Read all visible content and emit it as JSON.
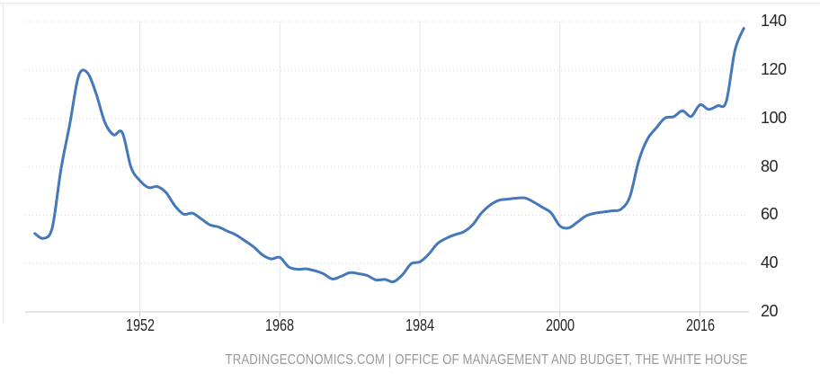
{
  "chart_data": {
    "type": "line",
    "title": "",
    "xlabel": "",
    "ylabel": "",
    "x": [
      1940,
      1941,
      1942,
      1943,
      1944,
      1945,
      1946,
      1947,
      1948,
      1949,
      1950,
      1951,
      1952,
      1953,
      1954,
      1955,
      1956,
      1957,
      1958,
      1959,
      1960,
      1961,
      1962,
      1963,
      1964,
      1965,
      1966,
      1967,
      1968,
      1969,
      1970,
      1971,
      1972,
      1973,
      1974,
      1975,
      1976,
      1977,
      1978,
      1979,
      1980,
      1981,
      1982,
      1983,
      1984,
      1985,
      1986,
      1987,
      1988,
      1989,
      1990,
      1991,
      1992,
      1993,
      1994,
      1995,
      1996,
      1997,
      1998,
      1999,
      2000,
      2001,
      2002,
      2003,
      2004,
      2005,
      2006,
      2007,
      2008,
      2009,
      2010,
      2011,
      2012,
      2013,
      2014,
      2015,
      2016,
      2017,
      2018,
      2019,
      2020,
      2021
    ],
    "values": [
      52.4,
      50.4,
      54.9,
      79.1,
      97.6,
      117.5,
      118.9,
      110.3,
      98.4,
      93.2,
      94.1,
      79.7,
      74.3,
      71.4,
      71.8,
      69.3,
      63.9,
      60.4,
      60.8,
      58.5,
      56.0,
      55.1,
      53.4,
      51.8,
      49.4,
      46.9,
      43.6,
      41.9,
      42.5,
      38.6,
      37.6,
      37.8,
      37.0,
      35.7,
      33.6,
      34.7,
      36.2,
      35.8,
      35.0,
      33.2,
      33.4,
      32.5,
      35.3,
      39.9,
      40.7,
      43.8,
      48.2,
      50.4,
      51.9,
      53.1,
      55.9,
      60.7,
      64.1,
      66.1,
      66.6,
      67.0,
      67.1,
      65.4,
      63.2,
      60.9,
      55.5,
      54.7,
      57.1,
      59.7,
      60.8,
      61.3,
      61.8,
      62.5,
      67.7,
      82.4,
      91.4,
      96.0,
      100.1,
      100.7,
      103.1,
      100.8,
      105.6,
      103.7,
      105.2,
      106.9,
      128.1,
      137.2
    ],
    "x_ticks": [
      1952,
      1968,
      1984,
      2000,
      2016
    ],
    "x_tick_labels": [
      "1952",
      "1968",
      "1984",
      "2000",
      "2016"
    ],
    "y_ticks": [
      140,
      120,
      100,
      80,
      60,
      40,
      20
    ],
    "y_tick_labels": [
      "140",
      "120",
      "100",
      "80",
      "60",
      "40",
      "20"
    ],
    "ylim": [
      20,
      140
    ],
    "xlim": [
      1939,
      2022
    ],
    "grid": "horizontal-dotted-and-vertical-solid",
    "legend": "none",
    "line_color": "#4478b9",
    "gridline_dotted_color": "#d6d6d6",
    "gridline_solid_color": "#e5e5e5",
    "axis_line_color": "#cccccc",
    "tick_label_color": "#262626",
    "caption_color": "#999999"
  },
  "caption": {
    "text": "TRADINGECONOMICS.COM | OFFICE OF MANAGEMENT AND BUDGET, THE WHITE HOUSE"
  }
}
